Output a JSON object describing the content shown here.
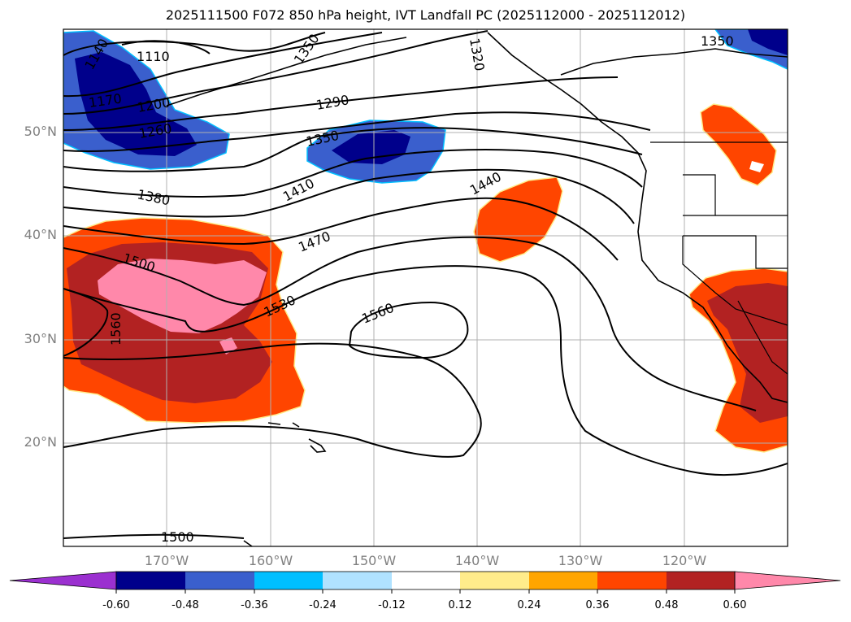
{
  "title": "2025111500 F072 850 hPa height, IVT Landfall PC (2025112000 - 2025112012)",
  "lat_labels": [
    "50°N",
    "40°N",
    "30°N",
    "20°N"
  ],
  "lon_labels": [
    "170°W",
    "160°W",
    "150°W",
    "140°W",
    "130°W",
    "120°W"
  ],
  "contour_labels": [
    "1110",
    "1140",
    "1170",
    "1200",
    "1260",
    "1290",
    "1320",
    "1350",
    "1350",
    "1350",
    "1380",
    "1410",
    "1440",
    "1470",
    "1500",
    "1500",
    "1530",
    "1560",
    "1560"
  ],
  "colorbar": {
    "ticks": [
      "-0.60",
      "-0.48",
      "-0.36",
      "-0.24",
      "-0.12",
      "0.12",
      "0.24",
      "0.36",
      "0.48",
      "0.60"
    ],
    "colors": [
      "#9b30d0",
      "#00008b",
      "#3a5fcd",
      "#00bfff",
      "#b0e2ff",
      "#ffffff",
      "#ffec8b",
      "#ffa500",
      "#ff4500",
      "#b22222",
      "#ff88aa"
    ]
  },
  "colors": {
    "neg_strong": "#00008b",
    "neg_mid": "#3a5fcd",
    "neg_light": "#00bfff",
    "pos_mid": "#ff4500",
    "pos_strong": "#b22222",
    "pos_max": "#ff88aa",
    "edge_yellow": "#ffec8b",
    "grid": "#b0b0b0"
  }
}
